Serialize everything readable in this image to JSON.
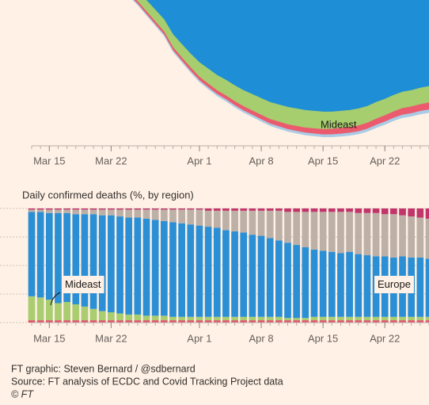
{
  "chart_data": [
    {
      "type": "area",
      "stacked": true,
      "y_inverted": true,
      "x": [
        13,
        14,
        15,
        16,
        17,
        18,
        19,
        20,
        21,
        22,
        23,
        24,
        25,
        26,
        27,
        28,
        29,
        30,
        31,
        32,
        33,
        34,
        35,
        36,
        37,
        38,
        39,
        40,
        41,
        42,
        43,
        44,
        45,
        46,
        47,
        48,
        49,
        50,
        51,
        52,
        53,
        54,
        55,
        56,
        57,
        58
      ],
      "xlim": [
        13,
        58
      ],
      "xticks": [
        {
          "value": 15,
          "label": "Mar 15"
        },
        {
          "value": 22,
          "label": "Mar 22"
        },
        {
          "value": 32,
          "label": "Apr 1"
        },
        {
          "value": 39,
          "label": "Apr 8"
        },
        {
          "value": 46,
          "label": "Apr 15"
        },
        {
          "value": 53,
          "label": "Apr 22"
        }
      ],
      "ylim": [
        0,
        8000
      ],
      "series": [
        {
          "color": "#1e8ed6",
          "values": [
            300,
            380,
            470,
            580,
            700,
            850,
            1000,
            1180,
            1370,
            1580,
            1800,
            2050,
            2350,
            2700,
            3050,
            3400,
            3950,
            4306,
            4656,
            4977,
            5210,
            5443,
            5618,
            5822,
            5997,
            6143,
            6289,
            6434,
            6522,
            6609,
            6668,
            6726,
            6755,
            6784,
            6784,
            6755,
            6726,
            6668,
            6580,
            6434,
            6318,
            6172,
            6055,
            5997,
            5910,
            5851
          ]
        },
        {
          "name": "Mideast",
          "color": "#a6cd6e",
          "values": [
            150,
            170,
            190,
            210,
            230,
            250,
            270,
            290,
            310,
            330,
            350,
            370,
            390,
            410,
            430,
            450,
            470,
            490,
            510,
            530,
            550,
            560,
            570,
            580,
            590,
            600,
            610,
            620,
            630,
            640,
            640,
            640,
            640,
            640,
            630,
            630,
            620,
            620,
            610,
            610,
            600,
            600,
            600,
            600,
            600,
            600
          ]
        },
        {
          "color": "#eb5a6d",
          "values": [
            30,
            35,
            40,
            45,
            50,
            55,
            60,
            65,
            70,
            75,
            80,
            85,
            90,
            95,
            100,
            105,
            110,
            115,
            120,
            125,
            130,
            135,
            140,
            145,
            150,
            155,
            160,
            165,
            170,
            175,
            180,
            185,
            190,
            195,
            200,
            205,
            210,
            215,
            220,
            225,
            230,
            235,
            240,
            245,
            250,
            255
          ]
        },
        {
          "color": "#a9cbe6",
          "values": [
            20,
            22,
            24,
            26,
            28,
            30,
            32,
            34,
            36,
            38,
            40,
            42,
            44,
            46,
            48,
            50,
            52,
            54,
            56,
            58,
            60,
            62,
            64,
            66,
            68,
            70,
            72,
            74,
            76,
            78,
            80,
            82,
            84,
            86,
            88,
            90,
            92,
            94,
            96,
            98,
            100,
            102,
            104,
            106,
            108,
            110
          ]
        }
      ]
    },
    {
      "type": "bar",
      "stacked": true,
      "title": "Daily confirmed deaths (%, by region)",
      "x": [
        13,
        14,
        15,
        16,
        17,
        18,
        19,
        20,
        21,
        22,
        23,
        24,
        25,
        26,
        27,
        28,
        29,
        30,
        31,
        32,
        33,
        34,
        35,
        36,
        37,
        38,
        39,
        40,
        41,
        42,
        43,
        44,
        45,
        46,
        47,
        48,
        49,
        50,
        51,
        52,
        53,
        54,
        55,
        56,
        57,
        58
      ],
      "xlim": [
        13,
        58
      ],
      "xticks": [
        {
          "value": 15,
          "label": "Mar 15"
        },
        {
          "value": 22,
          "label": "Mar 22"
        },
        {
          "value": 32,
          "label": "Apr 1"
        },
        {
          "value": 39,
          "label": "Apr 8"
        },
        {
          "value": 46,
          "label": "Apr 15"
        },
        {
          "value": 53,
          "label": "Apr 22"
        }
      ],
      "ylim": [
        0,
        100
      ],
      "yticks": [
        0,
        25,
        50,
        75,
        100
      ],
      "grid": true,
      "series": [
        {
          "color": "#e0506a",
          "values": [
            2,
            2,
            2,
            2,
            2,
            2,
            2,
            2,
            2,
            2,
            2,
            2,
            2,
            2,
            2,
            2,
            2,
            2,
            2,
            2,
            2,
            2,
            2,
            2,
            2,
            2,
            2,
            2,
            2,
            2,
            2,
            2,
            2,
            2,
            2,
            2,
            2,
            2,
            2,
            2,
            2,
            2,
            2,
            2,
            2,
            2
          ]
        },
        {
          "name": "Mideast",
          "color": "#a9cd6f",
          "values": [
            21,
            20,
            18,
            15,
            16,
            14,
            12,
            10,
            8,
            7,
            6,
            5,
            5,
            4,
            4,
            4,
            3,
            3,
            3,
            3,
            3,
            3,
            3,
            3,
            3,
            3,
            3,
            3,
            3,
            2,
            2,
            2,
            3,
            3,
            3,
            3,
            3,
            3,
            3,
            3,
            3,
            3,
            3,
            3,
            3,
            3
          ]
        },
        {
          "name": "Europe",
          "color": "#2b8fd5",
          "values": [
            74,
            75,
            76,
            79,
            78,
            79,
            81,
            83,
            84,
            85,
            85,
            85,
            85,
            85,
            84,
            83,
            83,
            82,
            81,
            80,
            79,
            78,
            76,
            75,
            74,
            72,
            71,
            69,
            67,
            66,
            64,
            62,
            59,
            58,
            57,
            56,
            57,
            55,
            54,
            53,
            53,
            52,
            53,
            52,
            52,
            51
          ]
        },
        {
          "color": "#bdb0a7",
          "values": [
            2,
            2,
            3,
            3,
            3,
            4,
            4,
            4,
            5,
            5,
            6,
            7,
            7,
            8,
            9,
            10,
            11,
            12,
            13,
            14,
            14,
            15,
            17,
            18,
            19,
            21,
            22,
            24,
            26,
            27,
            29,
            31,
            33,
            34,
            35,
            36,
            35,
            36,
            37,
            38,
            37,
            38,
            36,
            36,
            35,
            35
          ]
        },
        {
          "color": "#c1356b",
          "values": [
            1,
            1,
            1,
            1,
            1,
            1,
            1,
            1,
            1,
            1,
            1,
            1,
            1,
            1,
            1,
            1,
            1,
            1,
            1,
            1,
            2,
            2,
            2,
            2,
            2,
            2,
            2,
            2,
            2,
            3,
            3,
            3,
            3,
            3,
            3,
            3,
            3,
            4,
            4,
            4,
            5,
            5,
            6,
            7,
            8,
            9
          ]
        }
      ]
    }
  ],
  "footer": {
    "credit": "FT graphic: Steven Bernard / @sdbernard",
    "source": "Source: FT analysis of ECDC and Covid Tracking Project data",
    "copyright": "© FT"
  }
}
